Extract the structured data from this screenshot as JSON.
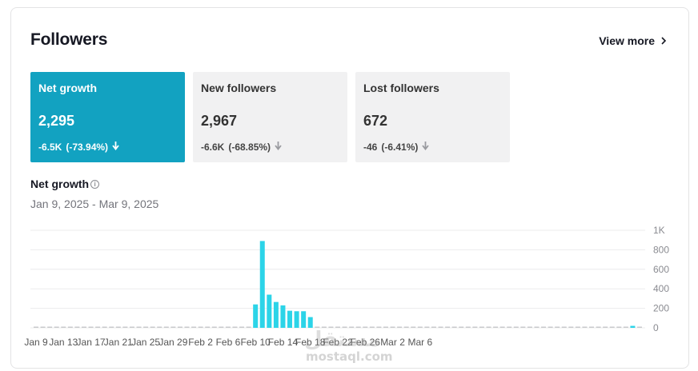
{
  "header": {
    "title": "Followers",
    "view_more_label": "View more"
  },
  "metrics": [
    {
      "label": "Net growth",
      "value": "2,295",
      "change": "-6.5K",
      "change_pct": "(-73.94%)",
      "active": true
    },
    {
      "label": "New followers",
      "value": "2,967",
      "change": "-6.6K",
      "change_pct": "(-68.85%)",
      "active": false
    },
    {
      "label": "Lost followers",
      "value": "672",
      "change": "-46",
      "change_pct": "(-6.41%)",
      "active": false
    }
  ],
  "section": {
    "title": "Net growth",
    "date_range": "Jan 9, 2025 - Mar 9, 2025"
  },
  "colors": {
    "accent": "#12a2c1",
    "bar": "#2cd4e8",
    "bar_low": "#c9cacc"
  },
  "chart_data": {
    "type": "bar",
    "ylim": [
      0,
      1000
    ],
    "y_ticks": [
      "1K",
      "800",
      "600",
      "400",
      "200",
      "0"
    ],
    "x_ticks": [
      "Jan 9",
      "Jan 13",
      "Jan 17",
      "Jan 21",
      "Jan 25",
      "Jan 29",
      "Feb 2",
      "Feb 6",
      "Feb 10",
      "Feb 14",
      "Feb 18",
      "Feb 22",
      "Feb 26",
      "Mar 2",
      "Mar 6"
    ],
    "start_date": "Jan 9",
    "values": [
      3,
      2,
      3,
      2,
      3,
      2,
      5,
      3,
      4,
      2,
      6,
      3,
      3,
      2,
      3,
      2,
      2,
      2,
      3,
      2,
      2,
      2,
      3,
      2,
      2,
      2,
      3,
      2,
      4,
      0,
      3,
      3,
      240,
      890,
      340,
      265,
      230,
      175,
      170,
      170,
      110,
      8,
      5,
      3,
      3,
      3,
      2,
      2,
      2,
      2,
      2,
      3,
      2,
      2,
      3,
      2,
      2,
      3,
      2,
      2,
      2,
      2,
      3,
      2,
      2,
      2,
      2,
      2,
      3,
      2,
      2,
      3,
      2,
      3,
      3,
      3,
      3,
      2,
      2,
      3,
      3,
      2,
      2,
      3,
      2,
      2,
      3,
      20,
      3
    ]
  },
  "watermark": {
    "arabic": "مستقل",
    "latin": "mostaql.com"
  }
}
